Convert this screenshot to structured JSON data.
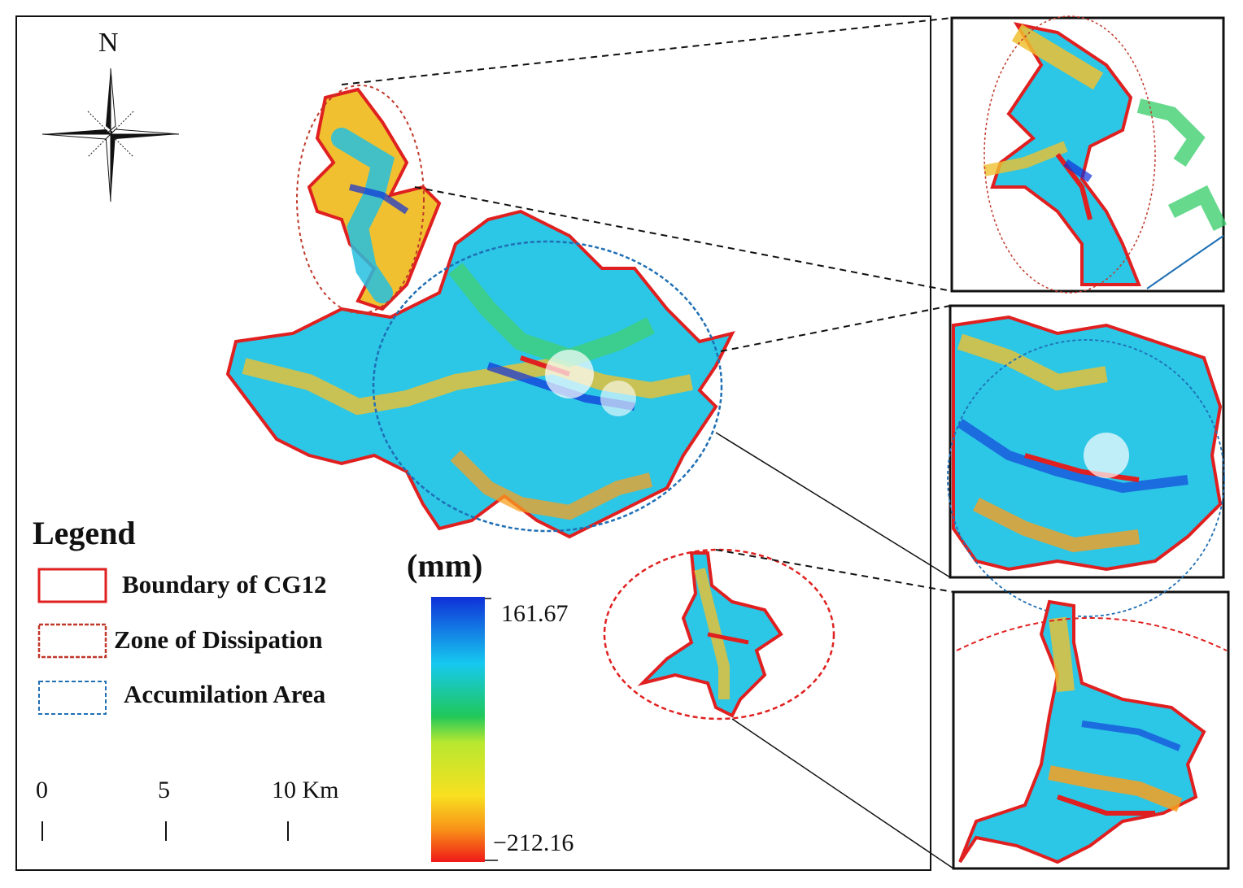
{
  "north_label": "N",
  "legend": {
    "title": "Legend",
    "items": [
      {
        "label": "Boundary of CG12",
        "color": "#e02020",
        "style": "solid"
      },
      {
        "label": "Zone of Dissipation",
        "color": "#c0392b",
        "style": "dashed"
      },
      {
        "label": "Accumilation Area",
        "color": "#1f6fb5",
        "style": "dashed"
      }
    ]
  },
  "colorbar": {
    "unit": "(mm)",
    "max_label": "161.67",
    "min_label": "−212.16",
    "max": 161.67,
    "min": -212.16,
    "colors": [
      "#1030d8",
      "#16c8f0",
      "#20c85a",
      "#b8e830",
      "#f8e020",
      "#f89018",
      "#f01818"
    ]
  },
  "scale_bar": {
    "labels": [
      "0",
      "5",
      "10 Km"
    ]
  },
  "colors": {
    "boundary": "#e02020",
    "dissipation": "#c0392b",
    "accumulation": "#1f6fb5",
    "frame": "#111111"
  }
}
